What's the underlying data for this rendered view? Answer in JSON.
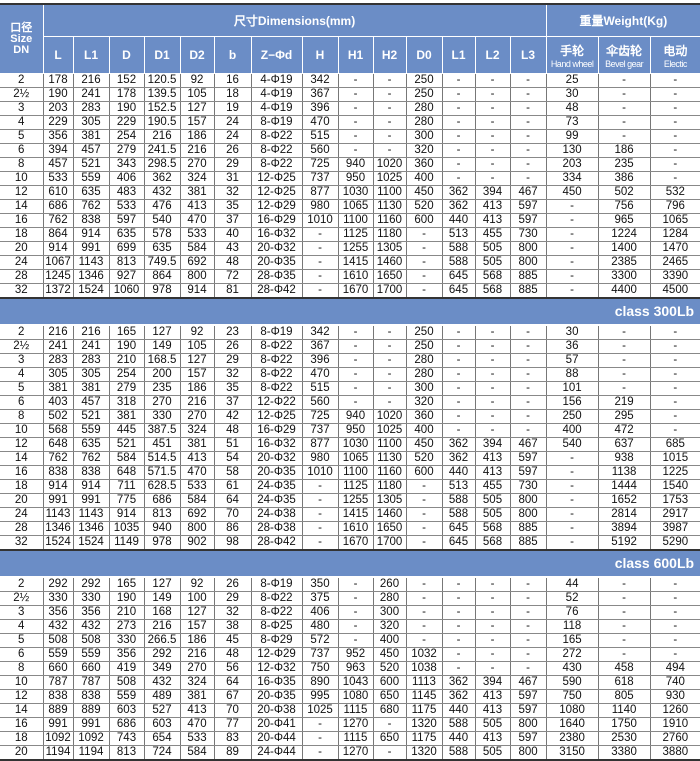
{
  "header": {
    "size_label_cn": "口径",
    "size_label_en": "Size",
    "size_label_dn": "DN",
    "dimensions_label": "尺寸Dimensions(mm)",
    "weight_label": "重量Weight(Kg)",
    "dim_columns": [
      "L",
      "L1",
      "D",
      "D1",
      "D2",
      "b",
      "Z−Φd",
      "H",
      "H1",
      "H2",
      "D0",
      "L1",
      "L2",
      "L3"
    ],
    "weight_columns": [
      {
        "cn": "手轮",
        "en": "Hand wheel"
      },
      {
        "cn": "伞齿轮",
        "en": "Bevel gear"
      },
      {
        "cn": "电动",
        "en": "Electic"
      }
    ]
  },
  "blocks": [
    {
      "class_label": "",
      "rows": [
        [
          "2",
          "178",
          "216",
          "152",
          "120.5",
          "92",
          "16",
          "4-Φ19",
          "342",
          "-",
          "-",
          "250",
          "-",
          "-",
          "-",
          "25",
          "-",
          "-"
        ],
        [
          "2½",
          "190",
          "241",
          "178",
          "139.5",
          "105",
          "18",
          "4-Φ19",
          "367",
          "-",
          "-",
          "250",
          "-",
          "-",
          "-",
          "30",
          "-",
          "-"
        ],
        [
          "3",
          "203",
          "283",
          "190",
          "152.5",
          "127",
          "19",
          "4-Φ19",
          "396",
          "-",
          "-",
          "280",
          "-",
          "-",
          "-",
          "48",
          "-",
          "-"
        ],
        [
          "4",
          "229",
          "305",
          "229",
          "190.5",
          "157",
          "24",
          "8-Φ19",
          "470",
          "-",
          "-",
          "280",
          "-",
          "-",
          "-",
          "73",
          "-",
          "-"
        ],
        [
          "5",
          "356",
          "381",
          "254",
          "216",
          "186",
          "24",
          "8-Φ22",
          "515",
          "-",
          "-",
          "300",
          "-",
          "-",
          "-",
          "99",
          "-",
          "-"
        ],
        [
          "6",
          "394",
          "457",
          "279",
          "241.5",
          "216",
          "26",
          "8-Φ22",
          "560",
          "-",
          "-",
          "320",
          "-",
          "-",
          "-",
          "130",
          "186",
          "-"
        ],
        [
          "8",
          "457",
          "521",
          "343",
          "298.5",
          "270",
          "29",
          "8-Φ22",
          "725",
          "940",
          "1020",
          "360",
          "-",
          "-",
          "-",
          "203",
          "235",
          "-"
        ],
        [
          "10",
          "533",
          "559",
          "406",
          "362",
          "324",
          "31",
          "12-Φ25",
          "737",
          "950",
          "1025",
          "400",
          "-",
          "-",
          "-",
          "334",
          "386",
          "-"
        ],
        [
          "12",
          "610",
          "635",
          "483",
          "432",
          "381",
          "32",
          "12-Φ25",
          "877",
          "1030",
          "1100",
          "450",
          "362",
          "394",
          "467",
          "450",
          "502",
          "532"
        ],
        [
          "14",
          "686",
          "762",
          "533",
          "476",
          "413",
          "35",
          "12-Φ29",
          "980",
          "1065",
          "1130",
          "520",
          "362",
          "413",
          "597",
          "-",
          "756",
          "796"
        ],
        [
          "16",
          "762",
          "838",
          "597",
          "540",
          "470",
          "37",
          "16-Φ29",
          "1010",
          "1100",
          "1160",
          "600",
          "440",
          "413",
          "597",
          "-",
          "965",
          "1065"
        ],
        [
          "18",
          "864",
          "914",
          "635",
          "578",
          "533",
          "40",
          "16-Φ32",
          "-",
          "1125",
          "1180",
          "-",
          "513",
          "455",
          "730",
          "-",
          "1224",
          "1284"
        ],
        [
          "20",
          "914",
          "991",
          "699",
          "635",
          "584",
          "43",
          "20-Φ32",
          "-",
          "1255",
          "1305",
          "-",
          "588",
          "505",
          "800",
          "-",
          "1400",
          "1470"
        ],
        [
          "24",
          "1067",
          "1143",
          "813",
          "749.5",
          "692",
          "48",
          "20-Φ35",
          "-",
          "1415",
          "1460",
          "-",
          "588",
          "505",
          "800",
          "-",
          "2385",
          "2465"
        ],
        [
          "28",
          "1245",
          "1346",
          "927",
          "864",
          "800",
          "72",
          "28-Φ35",
          "-",
          "1610",
          "1650",
          "-",
          "645",
          "568",
          "885",
          "-",
          "3300",
          "3390"
        ],
        [
          "32",
          "1372",
          "1524",
          "1060",
          "978",
          "914",
          "81",
          "28-Φ42",
          "-",
          "1670",
          "1700",
          "-",
          "645",
          "568",
          "885",
          "-",
          "4400",
          "4500"
        ]
      ]
    },
    {
      "class_label": "class 300Lb",
      "rows": [
        [
          "2",
          "216",
          "216",
          "165",
          "127",
          "92",
          "23",
          "8-Φ19",
          "342",
          "-",
          "-",
          "250",
          "-",
          "-",
          "-",
          "30",
          "-",
          "-"
        ],
        [
          "2½",
          "241",
          "241",
          "190",
          "149",
          "105",
          "26",
          "8-Φ22",
          "367",
          "-",
          "-",
          "250",
          "-",
          "-",
          "-",
          "36",
          "-",
          "-"
        ],
        [
          "3",
          "283",
          "283",
          "210",
          "168.5",
          "127",
          "29",
          "8-Φ22",
          "396",
          "-",
          "-",
          "280",
          "-",
          "-",
          "-",
          "57",
          "-",
          "-"
        ],
        [
          "4",
          "305",
          "305",
          "254",
          "200",
          "157",
          "32",
          "8-Φ22",
          "470",
          "-",
          "-",
          "280",
          "-",
          "-",
          "-",
          "88",
          "-",
          "-"
        ],
        [
          "5",
          "381",
          "381",
          "279",
          "235",
          "186",
          "35",
          "8-Φ22",
          "515",
          "-",
          "-",
          "300",
          "-",
          "-",
          "-",
          "101",
          "-",
          "-"
        ],
        [
          "6",
          "403",
          "457",
          "318",
          "270",
          "216",
          "37",
          "12-Φ22",
          "560",
          "-",
          "-",
          "320",
          "-",
          "-",
          "-",
          "156",
          "219",
          "-"
        ],
        [
          "8",
          "502",
          "521",
          "381",
          "330",
          "270",
          "42",
          "12-Φ25",
          "725",
          "940",
          "1020",
          "360",
          "-",
          "-",
          "-",
          "250",
          "295",
          "-"
        ],
        [
          "10",
          "568",
          "559",
          "445",
          "387.5",
          "324",
          "48",
          "16-Φ29",
          "737",
          "950",
          "1025",
          "400",
          "-",
          "-",
          "-",
          "400",
          "472",
          "-"
        ],
        [
          "12",
          "648",
          "635",
          "521",
          "451",
          "381",
          "51",
          "16-Φ32",
          "877",
          "1030",
          "1100",
          "450",
          "362",
          "394",
          "467",
          "540",
          "637",
          "685"
        ],
        [
          "14",
          "762",
          "762",
          "584",
          "514.5",
          "413",
          "54",
          "20-Φ32",
          "980",
          "1065",
          "1130",
          "520",
          "362",
          "413",
          "597",
          "-",
          "938",
          "1015"
        ],
        [
          "16",
          "838",
          "838",
          "648",
          "571.5",
          "470",
          "58",
          "20-Φ35",
          "1010",
          "1100",
          "1160",
          "600",
          "440",
          "413",
          "597",
          "-",
          "1138",
          "1225"
        ],
        [
          "18",
          "914",
          "914",
          "711",
          "628.5",
          "533",
          "61",
          "24-Φ35",
          "-",
          "1125",
          "1180",
          "-",
          "513",
          "455",
          "730",
          "-",
          "1444",
          "1540"
        ],
        [
          "20",
          "991",
          "991",
          "775",
          "686",
          "584",
          "64",
          "24-Φ35",
          "-",
          "1255",
          "1305",
          "-",
          "588",
          "505",
          "800",
          "-",
          "1652",
          "1753"
        ],
        [
          "24",
          "1143",
          "1143",
          "914",
          "813",
          "692",
          "70",
          "24-Φ38",
          "-",
          "1415",
          "1460",
          "-",
          "588",
          "505",
          "800",
          "-",
          "2814",
          "2917"
        ],
        [
          "28",
          "1346",
          "1346",
          "1035",
          "940",
          "800",
          "86",
          "28-Φ38",
          "-",
          "1610",
          "1650",
          "-",
          "645",
          "568",
          "885",
          "-",
          "3894",
          "3987"
        ],
        [
          "32",
          "1524",
          "1524",
          "1149",
          "978",
          "902",
          "98",
          "28-Φ42",
          "-",
          "1670",
          "1700",
          "-",
          "645",
          "568",
          "885",
          "-",
          "5192",
          "5290"
        ]
      ]
    },
    {
      "class_label": "class 600Lb",
      "rows": [
        [
          "2",
          "292",
          "292",
          "165",
          "127",
          "92",
          "26",
          "8-Φ19",
          "350",
          "-",
          "260",
          "-",
          "-",
          "-",
          "-",
          "44",
          "-",
          "-"
        ],
        [
          "2½",
          "330",
          "330",
          "190",
          "149",
          "100",
          "29",
          "8-Φ22",
          "375",
          "-",
          "280",
          "-",
          "-",
          "-",
          "-",
          "52",
          "-",
          "-"
        ],
        [
          "3",
          "356",
          "356",
          "210",
          "168",
          "127",
          "32",
          "8-Φ22",
          "406",
          "-",
          "300",
          "-",
          "-",
          "-",
          "-",
          "76",
          "-",
          "-"
        ],
        [
          "4",
          "432",
          "432",
          "273",
          "216",
          "157",
          "38",
          "8-Φ25",
          "480",
          "-",
          "320",
          "-",
          "-",
          "-",
          "-",
          "118",
          "-",
          "-"
        ],
        [
          "5",
          "508",
          "508",
          "330",
          "266.5",
          "186",
          "45",
          "8-Φ29",
          "572",
          "-",
          "400",
          "-",
          "-",
          "-",
          "-",
          "165",
          "-",
          "-"
        ],
        [
          "6",
          "559",
          "559",
          "356",
          "292",
          "216",
          "48",
          "12-Φ29",
          "737",
          "952",
          "450",
          "1032",
          "-",
          "-",
          "-",
          "272",
          "-",
          "-"
        ],
        [
          "8",
          "660",
          "660",
          "419",
          "349",
          "270",
          "56",
          "12-Φ32",
          "750",
          "963",
          "520",
          "1038",
          "-",
          "-",
          "-",
          "430",
          "458",
          "494"
        ],
        [
          "10",
          "787",
          "787",
          "508",
          "432",
          "324",
          "64",
          "16-Φ35",
          "890",
          "1043",
          "600",
          "1113",
          "362",
          "394",
          "467",
          "590",
          "618",
          "740"
        ],
        [
          "12",
          "838",
          "838",
          "559",
          "489",
          "381",
          "67",
          "20-Φ35",
          "995",
          "1080",
          "650",
          "1145",
          "362",
          "413",
          "597",
          "750",
          "805",
          "930"
        ],
        [
          "14",
          "889",
          "889",
          "603",
          "527",
          "413",
          "70",
          "20-Φ38",
          "1025",
          "1115",
          "680",
          "1175",
          "440",
          "413",
          "597",
          "1080",
          "1140",
          "1260"
        ],
        [
          "16",
          "991",
          "991",
          "686",
          "603",
          "470",
          "77",
          "20-Φ41",
          "-",
          "1270",
          "-",
          "1320",
          "588",
          "505",
          "800",
          "1640",
          "1750",
          "1910"
        ],
        [
          "18",
          "1092",
          "1092",
          "743",
          "654",
          "533",
          "83",
          "20-Φ44",
          "-",
          "1115",
          "650",
          "1175",
          "440",
          "413",
          "597",
          "2380",
          "2530",
          "2760"
        ],
        [
          "20",
          "1194",
          "1194",
          "813",
          "724",
          "584",
          "89",
          "24-Φ44",
          "-",
          "1270",
          "-",
          "1320",
          "588",
          "505",
          "800",
          "3150",
          "3380",
          "3880"
        ]
      ]
    }
  ],
  "colors": {
    "header_bg": "#6b8dc6",
    "header_text": "#ffffff"
  }
}
